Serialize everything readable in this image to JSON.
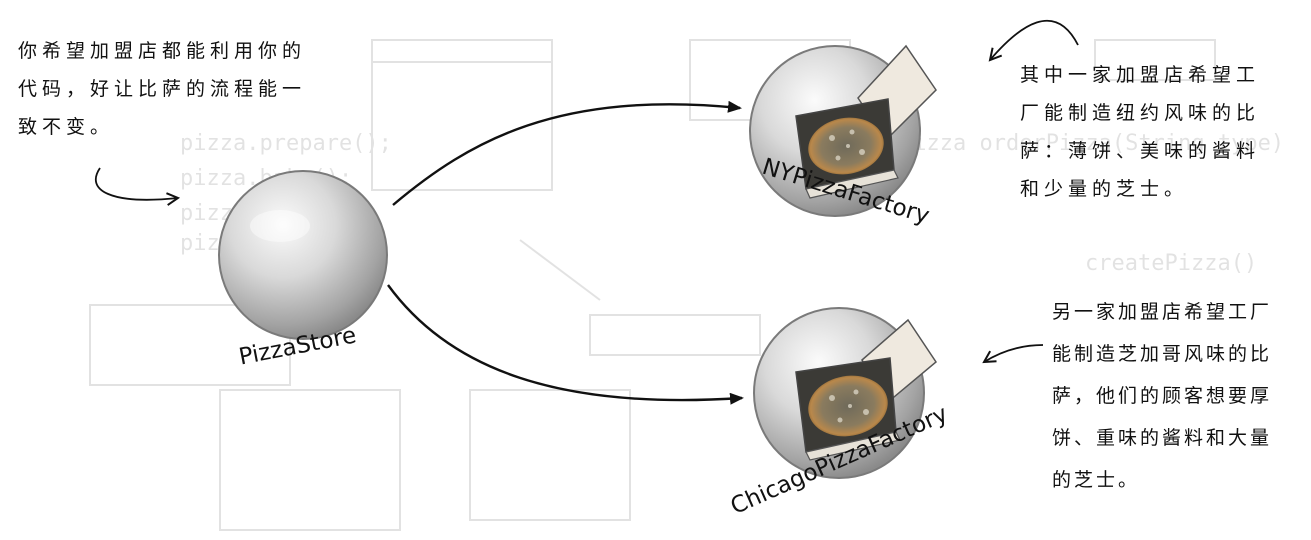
{
  "nodes": {
    "store": {
      "label": "PizzaStore"
    },
    "ny": {
      "label": "NYPizzaFactory"
    },
    "chicago": {
      "label": "ChicagoPizzaFactory"
    }
  },
  "notes": {
    "left": "你希望加盟店都能利用你的\n代码，好让比萨的流程能一\n致不变。",
    "ny": "其中一家加盟店希望工\n厂能制造纽约风味的比\n萨：薄饼、美味的酱料\n和少量的芝士。",
    "chicago": "另一家加盟店希望工厂\n能制造芝加哥风味的比\n萨，他们的顾客想要厚\n饼、重味的酱料和大量\n的芝士。"
  },
  "colors": {
    "ink": "#111111",
    "sphere_light": "#f1f1f1",
    "sphere_dark": "#8f8f8f",
    "pizza_crust": "#c58c4a",
    "box": "#ece7df"
  }
}
